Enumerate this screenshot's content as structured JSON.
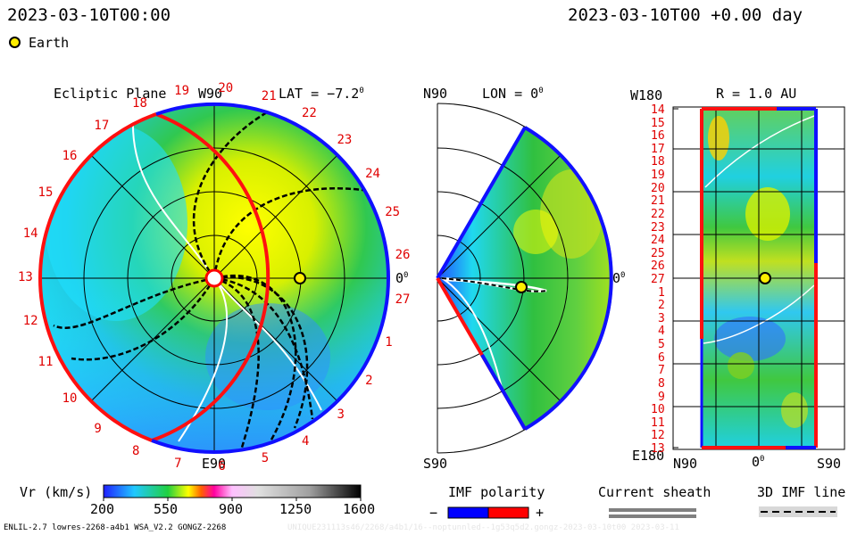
{
  "header": {
    "left_timestamp": "2023-03-10T00:00",
    "right_timestamp": "2023-03-10T00 +0.00 day",
    "legend_earth_label": "Earth"
  },
  "ecliptic_panel": {
    "title": "Ecliptic Plane",
    "top_direction": "W90",
    "bottom_direction": "E90",
    "right_angle": "0",
    "right_angle_sup": "0",
    "lat_label": "LAT = −7.2",
    "lat_sup": "0",
    "carrington_days": [
      "19",
      "20",
      "21",
      "22",
      "23",
      "24",
      "25",
      "26",
      "27",
      "1",
      "2",
      "3",
      "4",
      "5",
      "6",
      "7",
      "8",
      "9",
      "10",
      "11",
      "12",
      "13",
      "14",
      "15",
      "16",
      "17",
      "18"
    ]
  },
  "meridional_panel": {
    "north_label": "N90",
    "south_label": "S90",
    "lon_label": "LON = 0",
    "lon_sup": "0",
    "right_angle": "0",
    "right_angle_sup": "0"
  },
  "map_panel": {
    "top_left_label": "W180",
    "bottom_left_label": "E180",
    "radius_label": "R = 1.0 AU",
    "row_labels": [
      "14",
      "15",
      "16",
      "17",
      "18",
      "19",
      "20",
      "21",
      "22",
      "23",
      "24",
      "25",
      "26",
      "27",
      "1",
      "2",
      "3",
      "4",
      "5",
      "6",
      "7",
      "8",
      "9",
      "10",
      "11",
      "12",
      "13"
    ],
    "x_labels": {
      "left": "N90",
      "center": "0",
      "center_sup": "0",
      "right": "S90"
    }
  },
  "colorbar": {
    "label": "Vr (km/s)",
    "ticks": [
      "200",
      "550",
      "900",
      "1250",
      "1600"
    ]
  },
  "imf_polarity": {
    "label": "IMF polarity",
    "minus": "−",
    "plus": "+",
    "colors": {
      "negative": "#0000ff",
      "positive": "#ff0000"
    }
  },
  "current_sheath": {
    "label": "Current sheath"
  },
  "imf_line": {
    "label": "3D IMF line"
  },
  "footer": {
    "model_info": "ENLIL-2.7 lowres-2268-a4b1 WSA_V2.2 GONGZ-2268",
    "run_id": "UNIQUE231113s46/2268/a4b1/16--noptunnled--1g53q5d2.gongz-2023-03-10t00 2023-03-11"
  }
}
